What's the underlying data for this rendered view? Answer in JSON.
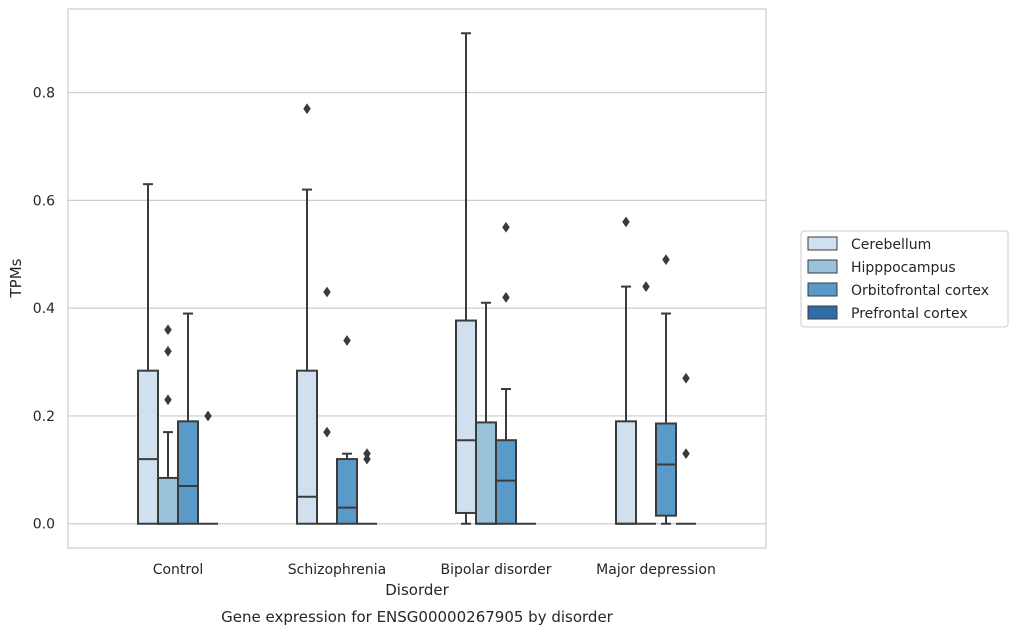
{
  "chart_data": {
    "type": "box",
    "title": "",
    "caption": "Gene expression for ENSG00000267905 by disorder",
    "xlabel": "Disorder",
    "ylabel": "TPMs",
    "ylim": [
      -0.045,
      0.955
    ],
    "yticks": [
      "0.0",
      "0.2",
      "0.4",
      "0.6",
      "0.8"
    ],
    "ytick_values": [
      0.0,
      0.2,
      0.4,
      0.6,
      0.8
    ],
    "grid": true,
    "legend_position": "right",
    "categories": [
      "Control",
      "Schizophrenia",
      "Bipolar disorder",
      "Major depression"
    ],
    "series": [
      {
        "name": "Cerebellum",
        "color": "#d0e0ef",
        "boxes": [
          {
            "q1": 0.0,
            "median": 0.12,
            "q3": 0.284,
            "whislo": 0.0,
            "whishi": 0.63,
            "fliers": []
          },
          {
            "q1": 0.0,
            "median": 0.05,
            "q3": 0.284,
            "whislo": 0.0,
            "whishi": 0.62,
            "fliers": [
              0.77
            ]
          },
          {
            "q1": 0.02,
            "median": 0.155,
            "q3": 0.377,
            "whislo": 0.0,
            "whishi": 0.91,
            "fliers": []
          },
          {
            "q1": 0.0,
            "median": 0.0,
            "q3": 0.19,
            "whislo": 0.0,
            "whishi": 0.44,
            "fliers": [
              0.56
            ]
          }
        ]
      },
      {
        "name": "Hipppocampus",
        "color": "#9ac2da",
        "boxes": [
          {
            "q1": 0.0,
            "median": 0.0,
            "q3": 0.085,
            "whislo": 0.0,
            "whishi": 0.17,
            "fliers": [
              0.23,
              0.32,
              0.36
            ]
          },
          {
            "q1": 0.0,
            "median": 0.0,
            "q3": 0.0,
            "whislo": 0.0,
            "whishi": 0.0,
            "fliers": [
              0.17,
              0.43
            ]
          },
          {
            "q1": 0.0,
            "median": 0.0,
            "q3": 0.188,
            "whislo": 0.0,
            "whishi": 0.41,
            "fliers": []
          },
          {
            "q1": 0.0,
            "median": 0.0,
            "q3": 0.0,
            "whislo": 0.0,
            "whishi": 0.0,
            "fliers": [
              0.44
            ]
          }
        ]
      },
      {
        "name": "Orbitofrontal cortex",
        "color": "#5a9ac8",
        "boxes": [
          {
            "q1": 0.0,
            "median": 0.07,
            "q3": 0.19,
            "whislo": 0.0,
            "whishi": 0.39,
            "fliers": []
          },
          {
            "q1": 0.0,
            "median": 0.03,
            "q3": 0.12,
            "whislo": 0.0,
            "whishi": 0.13,
            "fliers": [
              0.34
            ]
          },
          {
            "q1": 0.0,
            "median": 0.08,
            "q3": 0.155,
            "whislo": 0.0,
            "whishi": 0.25,
            "fliers": [
              0.42,
              0.55
            ]
          },
          {
            "q1": 0.015,
            "median": 0.11,
            "q3": 0.186,
            "whislo": 0.0,
            "whishi": 0.39,
            "fliers": [
              0.49
            ]
          }
        ]
      },
      {
        "name": "Prefrontal cortex",
        "color": "#2d6ea8",
        "boxes": [
          {
            "q1": 0.0,
            "median": 0.0,
            "q3": 0.0,
            "whislo": 0.0,
            "whishi": 0.0,
            "fliers": [
              0.2
            ]
          },
          {
            "q1": 0.0,
            "median": 0.0,
            "q3": 0.0,
            "whislo": 0.0,
            "whishi": 0.0,
            "fliers": [
              0.12,
              0.13
            ]
          },
          {
            "q1": 0.0,
            "median": 0.0,
            "q3": 0.0,
            "whislo": 0.0,
            "whishi": 0.0,
            "fliers": []
          },
          {
            "q1": 0.0,
            "median": 0.0,
            "q3": 0.0,
            "whislo": 0.0,
            "whishi": 0.0,
            "fliers": [
              0.13,
              0.27
            ]
          }
        ]
      }
    ],
    "line_color": "#3b3b3b",
    "grid_color": "#cccccc",
    "frame_color": "#cccccc"
  }
}
